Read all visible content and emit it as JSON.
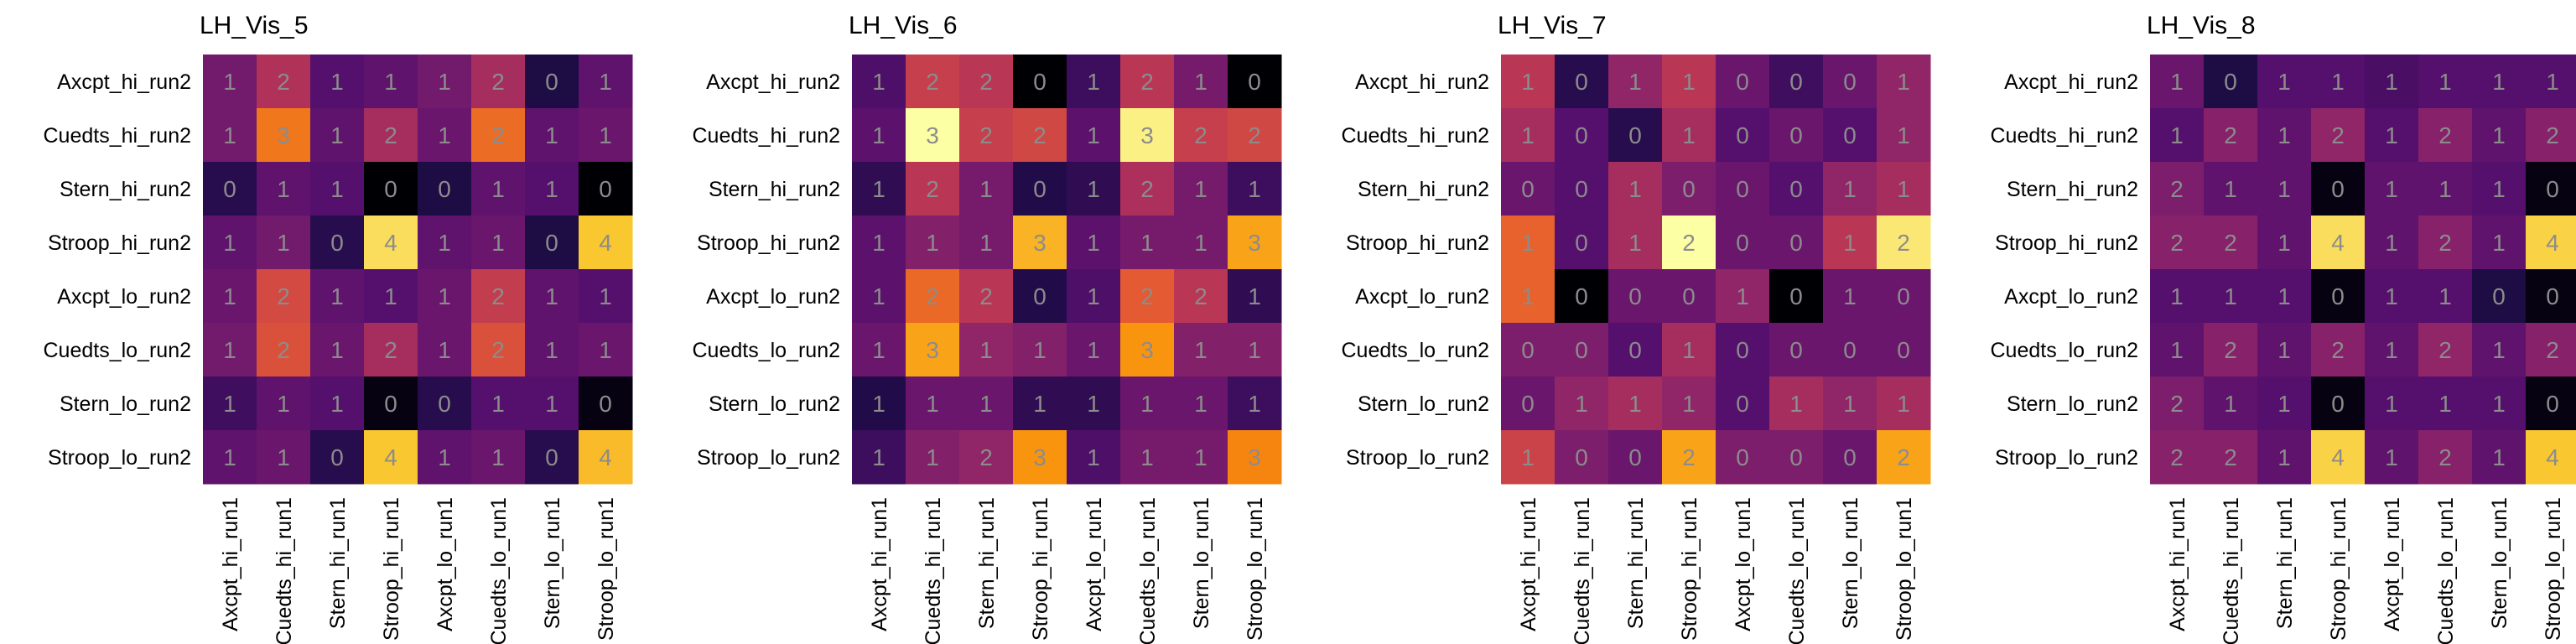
{
  "figure": {
    "row_labels": [
      "Axcpt_hi_run2",
      "Cuedts_hi_run2",
      "Stern_hi_run2",
      "Stroop_hi_run2",
      "Axcpt_lo_run2",
      "Cuedts_lo_run2",
      "Stern_lo_run2",
      "Stroop_lo_run2"
    ],
    "col_labels": [
      "Axcpt_hi_run1",
      "Cuedts_hi_run1",
      "Stern_hi_run1",
      "Stroop_hi_run1",
      "Axcpt_lo_run1",
      "Cuedts_lo_run1",
      "Stern_lo_run1",
      "Stroop_lo_run1"
    ],
    "colormap": "inferno"
  },
  "chart_data": [
    {
      "type": "heatmap",
      "title": "LH_Vis_5",
      "vmin": 0,
      "vmax": 4,
      "values": [
        [
          1,
          2,
          1,
          1,
          1,
          2,
          0,
          1
        ],
        [
          1,
          3,
          1,
          2,
          1,
          2,
          1,
          1
        ],
        [
          0,
          1,
          1,
          0,
          0,
          1,
          1,
          0
        ],
        [
          1,
          1,
          0,
          4,
          1,
          1,
          0,
          4
        ],
        [
          1,
          2,
          1,
          1,
          1,
          2,
          1,
          1
        ],
        [
          1,
          2,
          1,
          2,
          1,
          2,
          1,
          1
        ],
        [
          1,
          1,
          1,
          0,
          0,
          1,
          1,
          0
        ],
        [
          1,
          1,
          0,
          4,
          1,
          1,
          0,
          4
        ]
      ],
      "shade": [
        [
          1.3,
          1.9,
          1.0,
          1.1,
          1.3,
          1.8,
          0.5,
          1.1
        ],
        [
          1.3,
          2.8,
          1.1,
          1.8,
          1.2,
          2.7,
          1.1,
          1.2
        ],
        [
          0.6,
          1.1,
          1.0,
          0.0,
          0.5,
          1.1,
          1.0,
          0.0
        ],
        [
          1.1,
          1.3,
          0.6,
          3.7,
          1.1,
          1.2,
          0.5,
          3.5
        ],
        [
          1.2,
          2.3,
          1.1,
          1.0,
          1.2,
          2.1,
          1.1,
          1.0
        ],
        [
          1.3,
          2.4,
          1.2,
          1.8,
          1.2,
          2.4,
          1.1,
          1.2
        ],
        [
          0.8,
          1.1,
          1.0,
          0.1,
          0.6,
          1.0,
          1.0,
          0.1
        ],
        [
          1.1,
          1.2,
          0.6,
          3.5,
          1.1,
          1.2,
          0.6,
          3.4
        ]
      ]
    },
    {
      "type": "heatmap",
      "title": "LH_Vis_6",
      "vmin": 0,
      "vmax": 3,
      "values": [
        [
          1,
          2,
          2,
          0,
          1,
          2,
          1,
          0
        ],
        [
          1,
          3,
          2,
          2,
          1,
          3,
          2,
          2
        ],
        [
          1,
          2,
          1,
          0,
          1,
          2,
          1,
          1
        ],
        [
          1,
          1,
          1,
          3,
          1,
          1,
          1,
          3
        ],
        [
          1,
          2,
          2,
          0,
          1,
          2,
          2,
          1
        ],
        [
          1,
          3,
          1,
          1,
          1,
          3,
          1,
          1
        ],
        [
          1,
          1,
          1,
          1,
          1,
          1,
          1,
          1
        ],
        [
          1,
          1,
          2,
          3,
          1,
          1,
          1,
          3
        ]
      ],
      "shade": [
        [
          0.7,
          1.6,
          1.5,
          0.0,
          0.6,
          1.5,
          1.0,
          0.0
        ],
        [
          0.8,
          3.0,
          1.6,
          1.7,
          0.8,
          2.9,
          1.6,
          1.7
        ],
        [
          0.5,
          1.5,
          1.0,
          0.4,
          0.5,
          1.4,
          1.0,
          0.6
        ],
        [
          0.8,
          1.1,
          1.0,
          2.5,
          0.8,
          1.0,
          1.0,
          2.4
        ],
        [
          0.8,
          2.0,
          1.5,
          0.4,
          0.7,
          1.9,
          1.5,
          0.5
        ],
        [
          0.9,
          2.4,
          1.2,
          1.1,
          0.9,
          2.3,
          1.1,
          1.1
        ],
        [
          0.4,
          0.9,
          0.9,
          0.5,
          0.5,
          0.9,
          0.9,
          0.6
        ],
        [
          0.6,
          1.1,
          1.2,
          2.3,
          0.7,
          1.0,
          1.0,
          2.2
        ]
      ]
    },
    {
      "type": "heatmap",
      "title": "LH_Vis_7",
      "vmin": 0,
      "vmax": 2,
      "values": [
        [
          1,
          0,
          1,
          1,
          0,
          0,
          0,
          1
        ],
        [
          1,
          0,
          0,
          1,
          0,
          0,
          0,
          1
        ],
        [
          0,
          0,
          1,
          0,
          0,
          0,
          1,
          1
        ],
        [
          1,
          0,
          1,
          2,
          0,
          0,
          1,
          2
        ],
        [
          1,
          0,
          0,
          0,
          1,
          0,
          1,
          0
        ],
        [
          0,
          0,
          0,
          1,
          0,
          0,
          0,
          0
        ],
        [
          0,
          1,
          1,
          1,
          0,
          1,
          1,
          1
        ],
        [
          1,
          0,
          0,
          2,
          0,
          0,
          0,
          2
        ]
      ],
      "shade": [
        [
          1.0,
          0.3,
          0.8,
          1.0,
          0.6,
          0.4,
          0.6,
          0.8
        ],
        [
          0.9,
          0.5,
          0.3,
          0.9,
          0.5,
          0.6,
          0.5,
          0.8
        ],
        [
          0.6,
          0.5,
          0.9,
          0.7,
          0.6,
          0.5,
          0.8,
          0.9
        ],
        [
          1.3,
          0.5,
          0.9,
          2.0,
          0.6,
          0.6,
          1.0,
          1.9
        ],
        [
          1.3,
          0.0,
          0.6,
          0.6,
          0.8,
          0.0,
          0.6,
          0.6
        ],
        [
          0.7,
          0.7,
          0.5,
          0.9,
          0.5,
          0.6,
          0.6,
          0.6
        ],
        [
          0.6,
          0.8,
          0.9,
          0.8,
          0.5,
          0.9,
          0.8,
          0.9
        ],
        [
          1.1,
          0.7,
          0.6,
          1.6,
          0.7,
          0.7,
          0.6,
          1.6
        ]
      ]
    },
    {
      "type": "heatmap",
      "title": "LH_Vis_8",
      "vmin": 0,
      "vmax": 4,
      "values": [
        [
          1,
          0,
          1,
          1,
          1,
          1,
          1,
          1
        ],
        [
          1,
          2,
          1,
          2,
          1,
          2,
          1,
          2
        ],
        [
          2,
          1,
          1,
          0,
          1,
          1,
          1,
          0
        ],
        [
          2,
          2,
          1,
          4,
          1,
          2,
          1,
          4
        ],
        [
          1,
          1,
          1,
          0,
          1,
          1,
          0,
          0
        ],
        [
          1,
          2,
          1,
          2,
          1,
          2,
          1,
          2
        ],
        [
          2,
          1,
          1,
          0,
          1,
          1,
          1,
          0
        ],
        [
          2,
          2,
          1,
          4,
          1,
          2,
          1,
          4
        ]
      ],
      "shade": [
        [
          1.2,
          0.5,
          1.0,
          1.0,
          0.9,
          1.0,
          1.0,
          1.0
        ],
        [
          1.0,
          1.5,
          1.1,
          1.6,
          1.0,
          1.5,
          1.1,
          1.5
        ],
        [
          1.4,
          1.1,
          1.1,
          0.1,
          1.1,
          1.1,
          1.0,
          0.1
        ],
        [
          1.5,
          1.5,
          1.1,
          3.7,
          1.1,
          1.5,
          1.1,
          3.6
        ],
        [
          1.0,
          1.0,
          1.0,
          0.1,
          1.0,
          1.0,
          0.5,
          0.1
        ],
        [
          1.1,
          1.5,
          1.1,
          1.5,
          1.1,
          1.6,
          1.1,
          1.5
        ],
        [
          1.4,
          1.1,
          1.0,
          0.1,
          1.0,
          1.0,
          1.0,
          0.1
        ],
        [
          1.5,
          1.5,
          1.1,
          3.6,
          1.1,
          1.5,
          1.1,
          3.5
        ]
      ]
    }
  ]
}
